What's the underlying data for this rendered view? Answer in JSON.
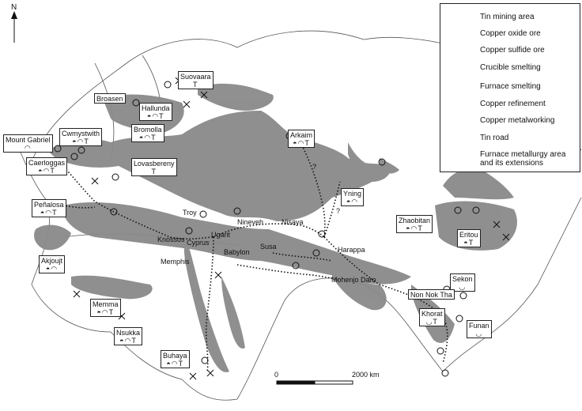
{
  "legend": {
    "items": [
      {
        "label": "Tin mining area",
        "icon": "tin-mining-icon"
      },
      {
        "label": "Copper oxide ore",
        "icon": "copper-oxide-icon"
      },
      {
        "label": "Copper sulfide ore",
        "icon": "copper-sulfide-icon"
      },
      {
        "label": "Crucible smelting",
        "icon": "crucible-icon"
      },
      {
        "label": "Furnace smelting",
        "icon": "furnace-icon"
      },
      {
        "label": "Copper refinement",
        "icon": "refinement-icon"
      },
      {
        "label": "Copper metalworking",
        "icon": "metalworking-icon"
      },
      {
        "label": "Tin road",
        "icon": "tin-road-icon"
      },
      {
        "label": "Furnace metallurgy area and its extensions",
        "icon": "furnace-area-icon"
      }
    ]
  },
  "north": "N",
  "scale": {
    "start": "0",
    "end": "2000 km"
  },
  "colors": {
    "area": "#8a8a8a",
    "coast": "#555555",
    "box": "#222222"
  },
  "sites": [
    {
      "name": "Suovaara",
      "icons": "T"
    },
    {
      "name": "Broasen",
      "icons": ""
    },
    {
      "name": "Hallunda",
      "icons": "◓◠T"
    },
    {
      "name": "Bromolla",
      "icons": "◓◠T"
    },
    {
      "name": "Mount Gabriel",
      "icons": "◠"
    },
    {
      "name": "Cwmystwith",
      "icons": "◓◠T"
    },
    {
      "name": "Caerloggas",
      "icons": "◓◠T"
    },
    {
      "name": "Lovasbereny",
      "icons": "T"
    },
    {
      "name": "Arkaim",
      "icons": "◓◠T"
    },
    {
      "name": "Yning",
      "icons": "◓◠"
    },
    {
      "name": "Peñalosa",
      "icons": "◓◠T"
    },
    {
      "name": "Zhaobitan",
      "icons": "◓◠T"
    },
    {
      "name": "Eritou",
      "icons": "◓T"
    },
    {
      "name": "Akjoujt",
      "icons": "◓◠"
    },
    {
      "name": "Sekon",
      "icons": "◡"
    },
    {
      "name": "Non Nok Tha",
      "icons": ""
    },
    {
      "name": "Memma",
      "icons": "◓◠T"
    },
    {
      "name": "Khorat",
      "icons": "◡T"
    },
    {
      "name": "Funan",
      "icons": "◡"
    },
    {
      "name": "Nsukka",
      "icons": "◓◠T"
    },
    {
      "name": "Buhaya",
      "icons": "◓◠T"
    }
  ],
  "places": {
    "troy": "Troy",
    "knossos": "Knossos",
    "cyprus": "Cyprus",
    "ugarit": "Ugarit",
    "nineveh": "Nineveh",
    "nisaya": "Nisaya",
    "memphis": "Memphis",
    "babylon": "Babylon",
    "susa": "Susa",
    "harappa": "Harappa",
    "mohenjo": "Mohenjo Daro",
    "q1": "?",
    "q2": "?"
  }
}
